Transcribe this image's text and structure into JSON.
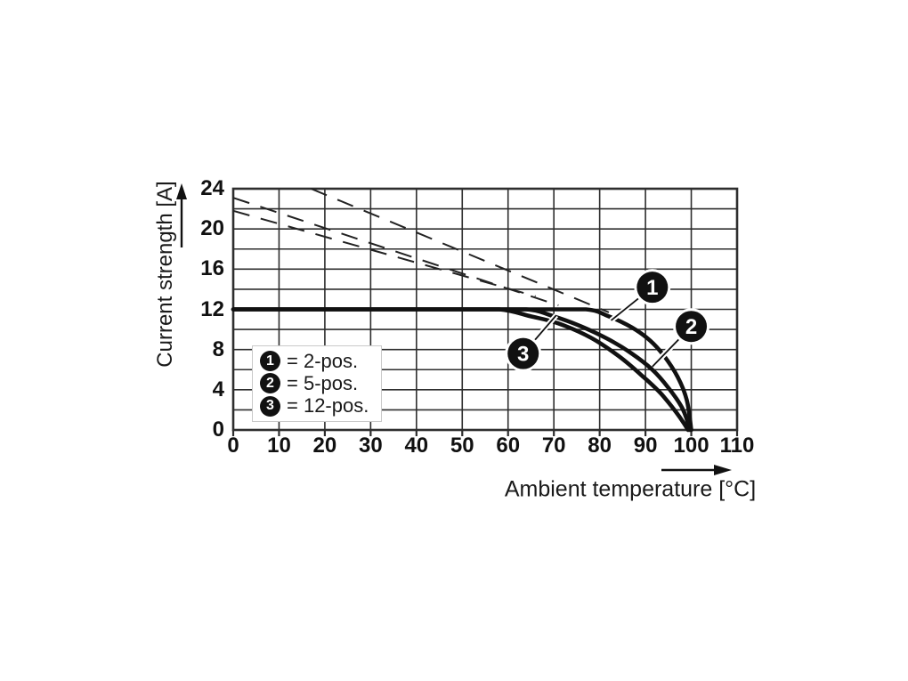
{
  "chart_data": {
    "type": "line",
    "title": "",
    "xlabel": "Ambient temperature [°C]",
    "ylabel": "Current strength [A]",
    "xlim": [
      0,
      110
    ],
    "ylim": [
      0,
      24
    ],
    "x_grid_step_c": 10,
    "y_grid_step_a": 2,
    "grid": true,
    "x_tick_labels": [
      "0",
      "10",
      "20",
      "30",
      "40",
      "50",
      "60",
      "70",
      "80",
      "90",
      "100",
      "110"
    ],
    "y_tick_labels": [
      "0",
      "4",
      "8",
      "12",
      "16",
      "20",
      "24"
    ],
    "series": [
      {
        "name": "2-pos.",
        "badge": "1",
        "line_style": "solid",
        "flat_current_a": 12,
        "flat_until_c": 77,
        "drop_points": [
          [
            77,
            12
          ],
          [
            82,
            11.3
          ],
          [
            87,
            10.2
          ],
          [
            91,
            8.9
          ],
          [
            94,
            7.4
          ],
          [
            97,
            5.3
          ],
          [
            99,
            3.0
          ],
          [
            100,
            0
          ]
        ]
      },
      {
        "name": "5-pos.",
        "badge": "2",
        "line_style": "solid",
        "flat_current_a": 12,
        "flat_until_c": 64,
        "drop_points": [
          [
            64,
            12
          ],
          [
            70,
            11.3
          ],
          [
            76,
            10.3
          ],
          [
            82,
            9.0
          ],
          [
            87,
            7.6
          ],
          [
            91.5,
            6.0
          ],
          [
            95,
            4.2
          ],
          [
            98,
            2.2
          ],
          [
            99.7,
            0
          ]
        ]
      },
      {
        "name": "12-pos.",
        "badge": "3",
        "line_style": "solid",
        "flat_current_a": 12,
        "flat_until_c": 58,
        "drop_points": [
          [
            58,
            12
          ],
          [
            65,
            11.3
          ],
          [
            71,
            10.6
          ],
          [
            78,
            9.2
          ],
          [
            84,
            7.4
          ],
          [
            89,
            5.5
          ],
          [
            94,
            3.3
          ],
          [
            99.3,
            0
          ]
        ]
      }
    ],
    "dashed_lines": [
      {
        "points": [
          [
            17,
            24
          ],
          [
            82,
            11.7
          ]
        ]
      },
      {
        "points": [
          [
            0,
            23.1
          ],
          [
            71,
            12.4
          ]
        ]
      },
      {
        "points": [
          [
            0,
            21.8
          ],
          [
            66,
            13.3
          ]
        ]
      }
    ],
    "annotations": [
      {
        "badge": "1",
        "at": [
          91.5,
          14.2
        ],
        "leader_to": [
          82.5,
          10.9
        ]
      },
      {
        "badge": "2",
        "at": [
          100.0,
          10.3
        ],
        "leader_to": [
          91.5,
          6.3
        ]
      },
      {
        "badge": "3",
        "at": [
          63.3,
          7.6
        ],
        "leader_to": [
          70.5,
          11.4
        ]
      }
    ],
    "legend": {
      "position": "inside-lower-left",
      "items": [
        {
          "symbol": "1",
          "label": "= 2-pos."
        },
        {
          "symbol": "2",
          "label": "= 5-pos."
        },
        {
          "symbol": "3",
          "label": "= 12-pos."
        }
      ]
    }
  },
  "colors": {
    "background": "#ffffff",
    "ink": "#1a1a1a",
    "grid": "#2e2e2e",
    "curve": "#111111",
    "dashed": "#222222",
    "badge_fill": "#111111",
    "badge_text": "#ffffff",
    "legend_border": "#c9c9c9"
  }
}
